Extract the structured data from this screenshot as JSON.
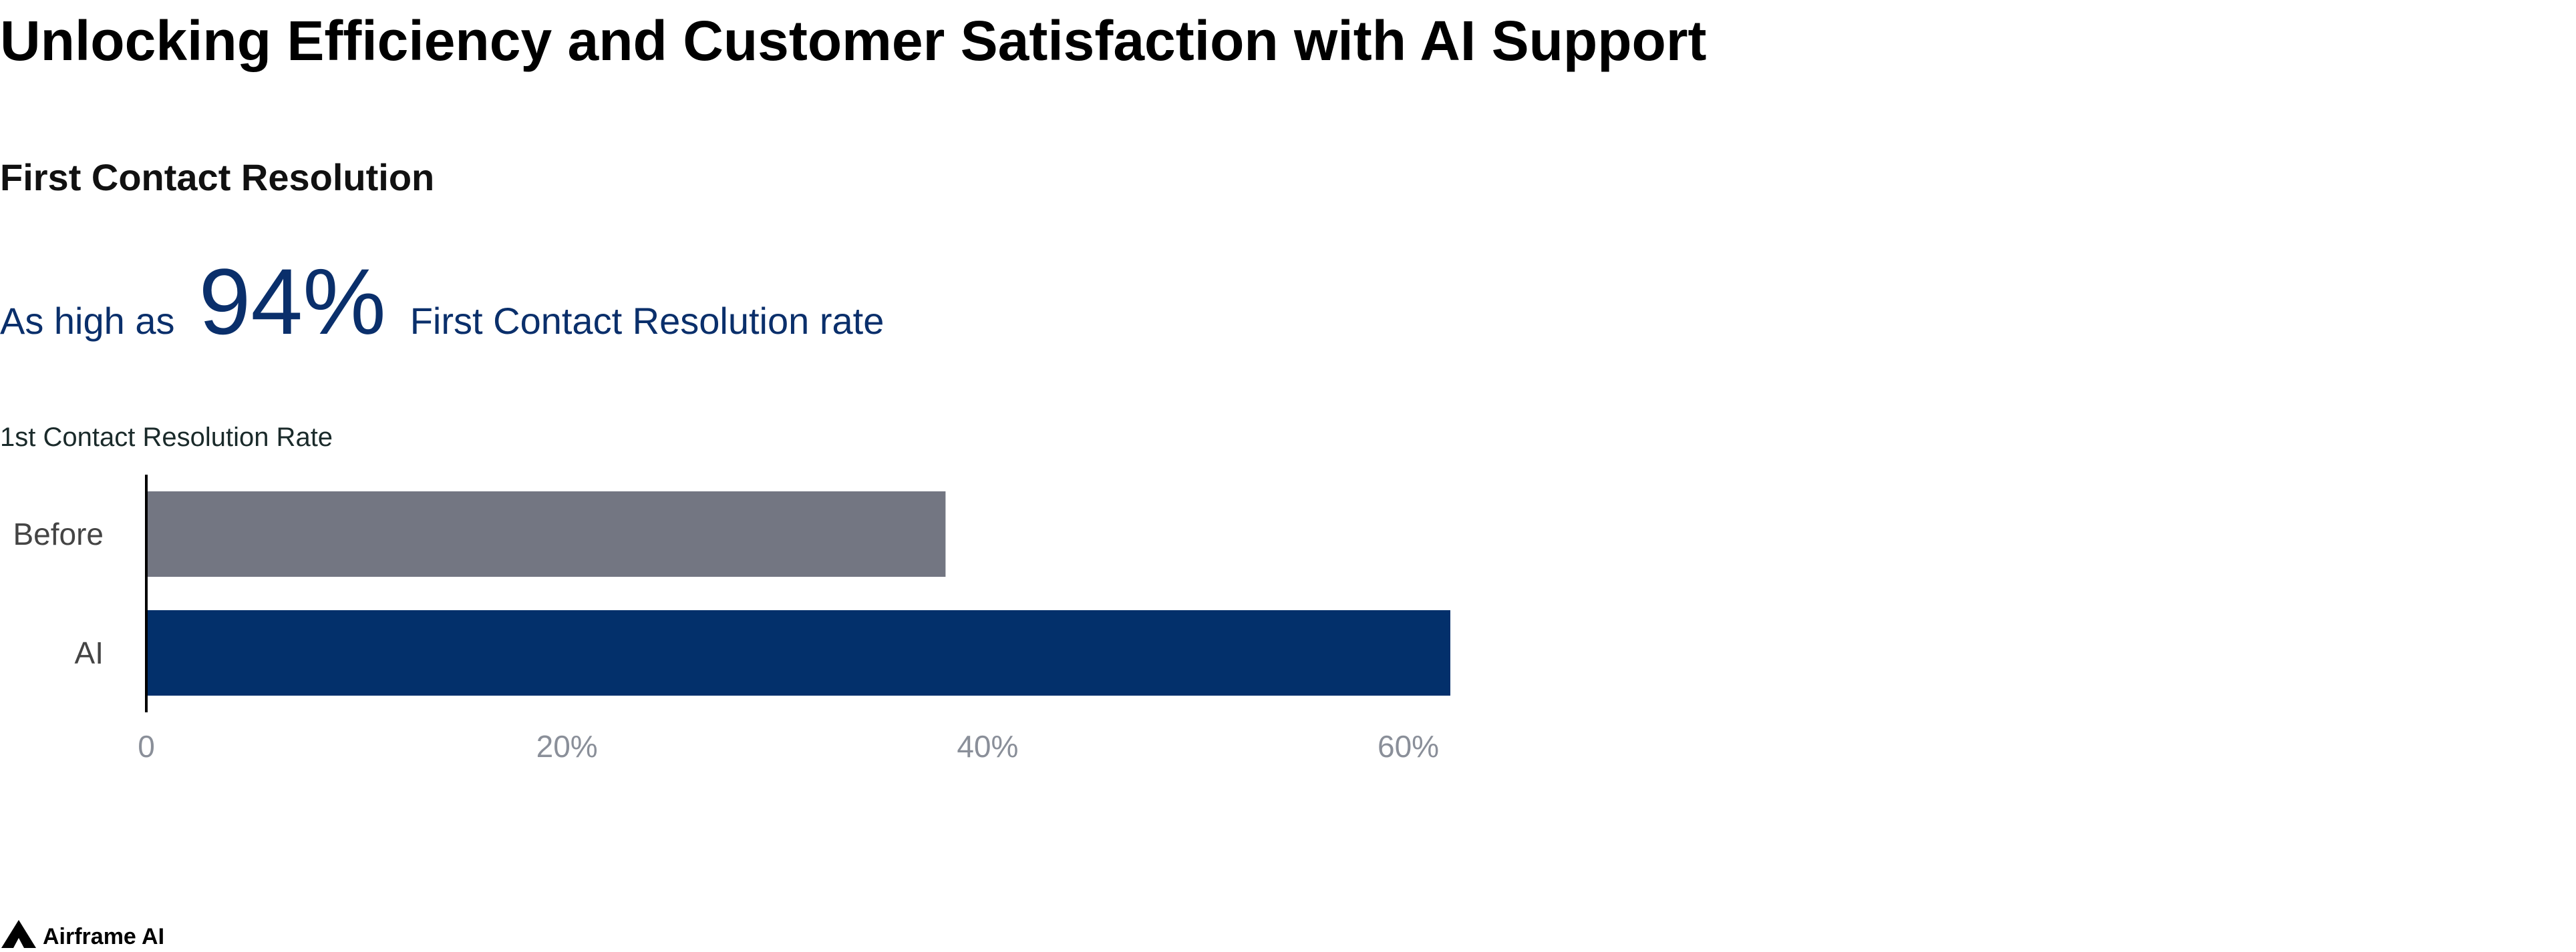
{
  "header": {
    "title": "Unlocking Efficiency and Customer Satisfaction with AI Support"
  },
  "section": {
    "title": "First Contact Resolution"
  },
  "highlight": {
    "prefix": "As high as",
    "value": "94%",
    "suffix": "First Contact Resolution rate"
  },
  "chart_data": {
    "type": "bar",
    "orientation": "horizontal",
    "title": "1st Contact Resolution Rate",
    "categories": [
      "Before",
      "AI"
    ],
    "values": [
      38,
      62
    ],
    "colors": [
      "#737682",
      "#03306b"
    ],
    "xlim": [
      0,
      62
    ],
    "xticks": [
      0,
      {
        "value": 20,
        "label": "20%"
      },
      {
        "value": 40,
        "label": "40%"
      },
      {
        "value": 60,
        "label": "60%"
      }
    ],
    "grid": false
  },
  "footer": {
    "brand": "Airframe AI"
  }
}
